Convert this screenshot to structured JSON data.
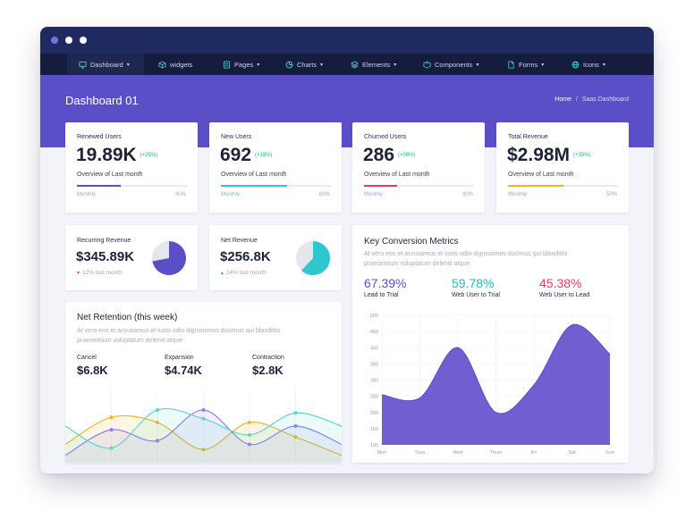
{
  "window": {
    "dots": [
      {
        "name": "window-dot-purple",
        "color": "#7f6cf0"
      },
      {
        "name": "window-dot-white-1",
        "color": "#ffffff"
      },
      {
        "name": "window-dot-white-2",
        "color": "#ffffff"
      }
    ]
  },
  "nav": {
    "items": [
      {
        "label": "Dashboard",
        "icon": "monitor-icon",
        "caret": true,
        "active": true
      },
      {
        "label": "widgets",
        "icon": "cube-icon",
        "caret": false,
        "active": false
      },
      {
        "label": "Pages",
        "icon": "stack-icon",
        "caret": true,
        "active": false
      },
      {
        "label": "Charts",
        "icon": "pie-chart-icon",
        "caret": true,
        "active": false
      },
      {
        "label": "Elements",
        "icon": "layers-icon",
        "caret": true,
        "active": false
      },
      {
        "label": "Components",
        "icon": "box-icon",
        "caret": true,
        "active": false
      },
      {
        "label": "Forms",
        "icon": "file-icon",
        "caret": true,
        "active": false
      },
      {
        "label": "Icons",
        "icon": "globe-icon",
        "caret": true,
        "active": false
      }
    ]
  },
  "header": {
    "title": "Dashboard 01",
    "breadcrumb": {
      "home": "Home",
      "separator": "/",
      "current": "Saas Dashboard"
    }
  },
  "stats": [
    {
      "label": "Renewed Users",
      "value": "19.89K",
      "change": "(+25%)",
      "sub": "Overview of Last month",
      "foot_left": "Monthly",
      "foot_right": "40%",
      "progress": 0.4,
      "color": "#5b4fc8"
    },
    {
      "label": "New Users",
      "value": "692",
      "change": "(+15%)",
      "sub": "Overview of Last month",
      "foot_left": "Monthly",
      "foot_right": "60%",
      "progress": 0.6,
      "color": "#36c3cf"
    },
    {
      "label": "Churned Users",
      "value": "286",
      "change": "(+08%)",
      "sub": "Overview of Last month",
      "foot_left": "Monthly",
      "foot_right": "30%",
      "progress": 0.3,
      "color": "#e0405e"
    },
    {
      "label": "Total Revenue",
      "value": "$2.98M",
      "change": "(+35%)",
      "sub": "Overview of Last month",
      "foot_left": "Monthly",
      "foot_right": "50%",
      "progress": 0.5,
      "color": "#f0b429"
    }
  ],
  "mini": [
    {
      "label": "Recurring Revenue",
      "value": "$345.89K",
      "sub": "12% last month",
      "mark": "▾",
      "mark_color": "#e0405e",
      "pie_fraction": 0.72,
      "pie_color": "#5b4fc8"
    },
    {
      "label": "Net Revenue",
      "value": "$256.8K",
      "sub": "24% last month",
      "mark": "▴",
      "mark_color": "#24b37a",
      "pie_fraction": 0.62,
      "pie_color": "#2ec7cf"
    }
  ],
  "retention": {
    "title": "Net Retention (this week)",
    "desc_1": "At vero eos et accusamus et iusto odio dignissimos ducimus qui blanditiis",
    "desc_2": "praesentium voluptatum deleniti atque",
    "metrics": [
      {
        "label": "Cancel",
        "value": "$6.8K"
      },
      {
        "label": "Expansion",
        "value": "$4.74K"
      },
      {
        "label": "Contraction",
        "value": "$2.8K"
      }
    ]
  },
  "conversion": {
    "title": "Key Conversion Metrics",
    "desc_1": "At vero eos et accusamus et iusto odio dignissimos ducimus qui blanditiis",
    "desc_2": "praesentium voluptatum deleniti atque",
    "metrics": [
      {
        "value": "67.39%",
        "label": "Lead to Trial",
        "color": "#5b4fc8"
      },
      {
        "value": "59.78%",
        "label": "Web User to Trial",
        "color": "#1fb9c0"
      },
      {
        "value": "45.38%",
        "label": "Web User to Lead",
        "color": "#e0405e"
      }
    ]
  },
  "chart_data": [
    {
      "type": "area",
      "x": [
        "Mon",
        "Tues",
        "Wed",
        "Thurs",
        "Fri",
        "Sat",
        "Sun"
      ],
      "series": [
        {
          "values": [
            255,
            245,
            400,
            200,
            285,
            470,
            380
          ]
        }
      ],
      "yticks": [
        "100",
        "150",
        "200",
        "250",
        "300",
        "350",
        "400",
        "450",
        "500"
      ],
      "ylim": [
        100,
        500
      ],
      "grid": true,
      "color": "#6f5fd0"
    },
    {
      "type": "line",
      "series": [
        {
          "color": "#f0b429",
          "values": [
            0.25,
            0.62,
            0.55,
            0.18,
            0.55,
            0.35,
            0.1
          ]
        },
        {
          "color": "#8e7ce8",
          "values": [
            0.1,
            0.45,
            0.3,
            0.72,
            0.25,
            0.5,
            0.25
          ]
        },
        {
          "color": "#5fd4cf",
          "values": [
            0.5,
            0.2,
            0.72,
            0.6,
            0.38,
            0.68,
            0.5
          ]
        }
      ],
      "fill_opacity": 0.12,
      "grid": true
    }
  ]
}
